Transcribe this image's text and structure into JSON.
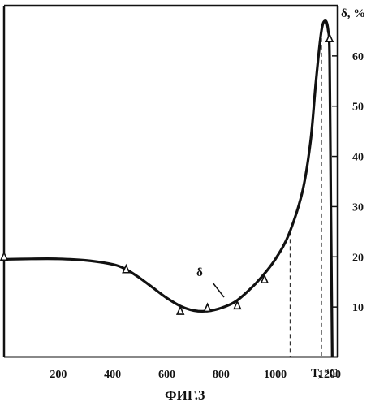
{
  "caption": "ФИГ.3",
  "chart_data": {
    "type": "line",
    "xlabel": "T, °C",
    "ylabel": "δ, %",
    "curve_label": "δ",
    "xlim": [
      0,
      1230
    ],
    "ylim": [
      0,
      70
    ],
    "x_ticks": [
      200,
      400,
      600,
      800,
      1000,
      1200
    ],
    "y_ticks": [
      10,
      20,
      30,
      40,
      50,
      60
    ],
    "grid": false,
    "series": [
      {
        "name": "δ",
        "x": [
          0,
          100,
          200,
          300,
          400,
          450,
          500,
          550,
          600,
          650,
          700,
          750,
          800,
          850,
          900,
          950,
          1000,
          1050,
          1100,
          1130,
          1150,
          1170,
          1185,
          1195,
          1200,
          1205,
          1210
        ],
        "y": [
          19.5,
          19.6,
          19.6,
          19.3,
          18.5,
          17.5,
          15.8,
          13.8,
          11.8,
          10.2,
          9.3,
          9.2,
          9.8,
          11.0,
          13.2,
          16.0,
          19.5,
          24.5,
          33.0,
          43.0,
          55.0,
          65.0,
          67.0,
          65.0,
          60.0,
          30.0,
          0
        ],
        "points_x": [
          0,
          450,
          650,
          750,
          860,
          960,
          1200
        ],
        "points_y": [
          20,
          17.5,
          9.2,
          9.8,
          10.3,
          15.5,
          63.5
        ]
      }
    ],
    "dashed_verticals": [
      {
        "x": 1055,
        "y_top": 25
      },
      {
        "x": 1170,
        "y_top": 65
      }
    ]
  }
}
